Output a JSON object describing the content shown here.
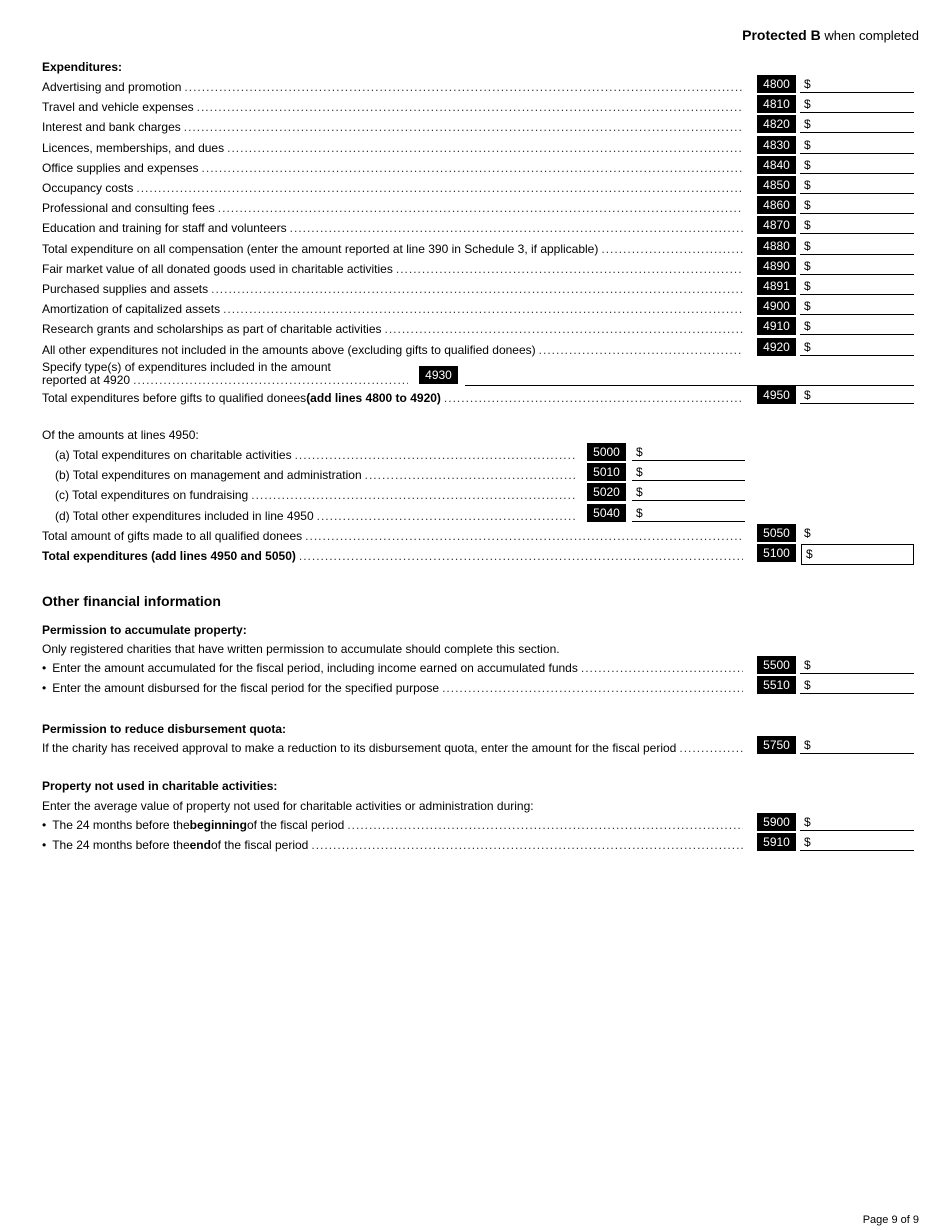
{
  "header": {
    "protected": "Protected B",
    "when_completed": "when completed"
  },
  "expenditures": {
    "title": "Expenditures:",
    "rows": [
      {
        "label": "Advertising and promotion",
        "code": "4800"
      },
      {
        "label": "Travel and vehicle expenses",
        "code": "4810"
      },
      {
        "label": "Interest and bank charges",
        "code": "4820"
      },
      {
        "label": "Licences, memberships, and dues",
        "code": "4830"
      },
      {
        "label": "Office supplies and expenses",
        "code": "4840"
      },
      {
        "label": "Occupancy costs",
        "code": "4850"
      },
      {
        "label": "Professional and consulting fees",
        "code": "4860"
      },
      {
        "label": "Education and training for staff and volunteers",
        "code": "4870"
      },
      {
        "label": "Total expenditure on all compensation (enter the amount reported at line 390 in Schedule 3, if applicable)",
        "code": "4880"
      },
      {
        "label": "Fair market value of all donated goods used in charitable activities",
        "code": "4890"
      },
      {
        "label": "Purchased supplies and assets",
        "code": "4891"
      },
      {
        "label": "Amortization of capitalized assets",
        "code": "4900"
      },
      {
        "label": "Research grants and scholarships as part of charitable activities",
        "code": "4910"
      },
      {
        "label": "All other expenditures not included in the amounts above (excluding gifts to qualified donees)",
        "code": "4920"
      }
    ],
    "specify": {
      "line1": "Specify type(s) of expenditures included in the amount",
      "line2": "reported at 4920",
      "code": "4930",
      "value": ""
    },
    "total_before_gifts": {
      "label": "Total expenditures before gifts to qualified donees ",
      "label_bold": "(add lines 4800 to 4920)",
      "code": "4950"
    },
    "of_amounts": "Of the amounts at lines 4950:",
    "sub_rows": [
      {
        "label": "(a) Total expenditures on charitable activities",
        "code": "5000"
      },
      {
        "label": "(b) Total expenditures on management and administration",
        "code": "5010"
      },
      {
        "label": "(c) Total expenditures on fundraising",
        "code": "5020"
      },
      {
        "label": "(d) Total other expenditures included in line 4950",
        "code": "5040"
      }
    ],
    "gifts": {
      "label": "Total amount of gifts made to all qualified donees",
      "code": "5050"
    },
    "total": {
      "label": "Total expenditures (add lines 4950 and 5050)",
      "code": "5100"
    }
  },
  "currency": "$",
  "other": {
    "title": "Other financial information",
    "accumulate": {
      "title": "Permission to accumulate property:",
      "intro": "Only registered charities that have written permission to accumulate should complete this section.",
      "rows": [
        {
          "label": "Enter the amount accumulated for the fiscal period, including income earned on accumulated funds",
          "code": "5500"
        },
        {
          "label": "Enter the amount disbursed for the fiscal period for the specified purpose",
          "code": "5510"
        }
      ]
    },
    "reduce": {
      "title": "Permission to reduce disbursement quota:",
      "label": "If the charity has received approval to make a reduction to its disbursement quota, enter the amount for the fiscal period",
      "code": "5750"
    },
    "property": {
      "title": "Property not used in charitable activities:",
      "intro": "Enter the average value of property not used for charitable activities or administration during:",
      "rows": [
        {
          "pre": "The 24 months before the ",
          "bold": "beginning",
          "post": " of the fiscal period",
          "code": "5900"
        },
        {
          "pre": "The 24 months before the ",
          "bold": "end",
          "post": " of the fiscal period",
          "code": "5910"
        }
      ]
    }
  },
  "footer": {
    "page": "Page 9 of 9"
  }
}
